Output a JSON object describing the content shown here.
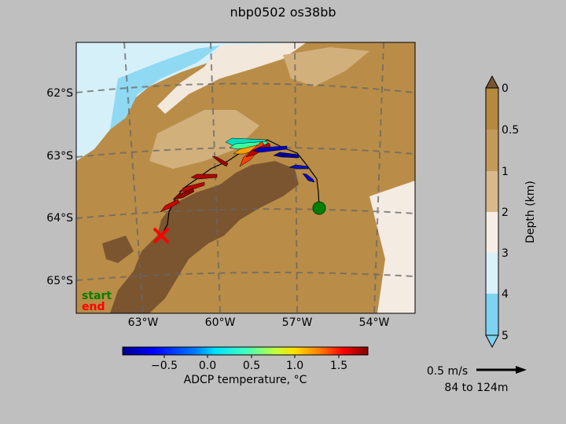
{
  "title": "nbp0502 os38bb",
  "map": {
    "lat_labels": [
      "62°S",
      "63°S",
      "64°S",
      "65°S"
    ],
    "lon_labels": [
      "63°W",
      "60°W",
      "57°W",
      "54°W"
    ],
    "start_label": "start",
    "end_label": "end",
    "start_color": "#008000",
    "end_color": "#ff0000"
  },
  "depth_colorbar": {
    "label": "Depth (km)",
    "ticks": [
      "0",
      "0.5",
      "1",
      "2",
      "3",
      "4",
      "5"
    ],
    "colors": [
      "#b5893e",
      "#c49a5a",
      "#d2b07c",
      "#e6cfb0",
      "#f6eee6",
      "#d9f1fb",
      "#a9e1f5",
      "#7dd3f0"
    ]
  },
  "temp_colorbar": {
    "label": "ADCP temperature, °C",
    "ticks": [
      "−0.5",
      "0.0",
      "0.5",
      "1.0",
      "1.5"
    ],
    "range": [
      -1.0,
      1.8
    ]
  },
  "scale": {
    "speed_label": "0.5 m/s",
    "depth_range_label": "84 to 124m"
  }
}
